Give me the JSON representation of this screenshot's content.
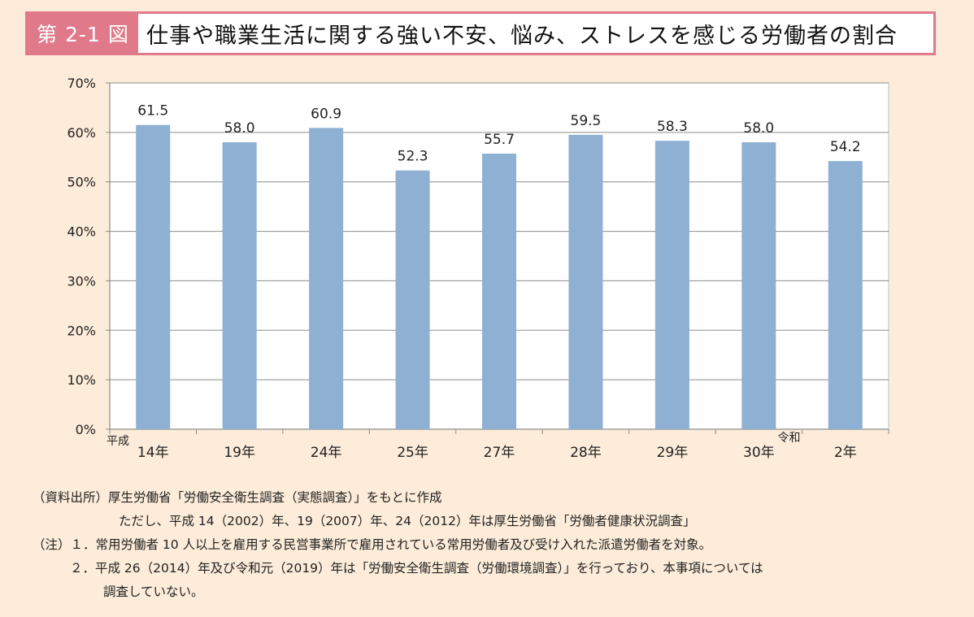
{
  "header": {
    "figure_label": "第 2-1 図",
    "title": "仕事や職業生活に関する強い不安、悩み、ストレスを感じる労働者の割合"
  },
  "chart_data": {
    "type": "bar",
    "title": "仕事や職業生活に関する強い不安、悩み、ストレスを感じる労働者の割合",
    "categories": [
      "14年",
      "19年",
      "24年",
      "25年",
      "27年",
      "28年",
      "29年",
      "30年",
      "2年"
    ],
    "era_labels": {
      "heisei": "平成",
      "reiwa": "令和"
    },
    "values": [
      61.5,
      58.0,
      60.9,
      52.3,
      55.7,
      59.5,
      58.3,
      58.0,
      54.2
    ],
    "value_labels": [
      "61.5",
      "58.0",
      "60.9",
      "52.3",
      "55.7",
      "59.5",
      "58.3",
      "58.0",
      "54.2"
    ],
    "y_ticks": [
      "0%",
      "10%",
      "20%",
      "30%",
      "40%",
      "50%",
      "60%",
      "70%"
    ],
    "ylim": [
      0,
      70
    ],
    "grid": true,
    "bar_color": "#8db0d3",
    "plot_background": "#ffffff"
  },
  "notes": {
    "source_1": "（資料出所）厚生労働省「労働安全衛生調査（実態調査）」をもとに作成",
    "source_2": "ただし、平成 14（2002）年、19（2007）年、24（2012）年は厚生労働省「労働者健康状況調査」",
    "note_1": "（注）１．常用労働者 10 人以上を雇用する民営事業所で雇用されている常用労働者及び受け入れた派遣労働者を対象。",
    "note_2": "２．平成 26（2014）年及び令和元（2019）年は「労働安全衛生調査（労働環境調査）」を行っており、本事項については",
    "note_3": "調査していない。"
  }
}
